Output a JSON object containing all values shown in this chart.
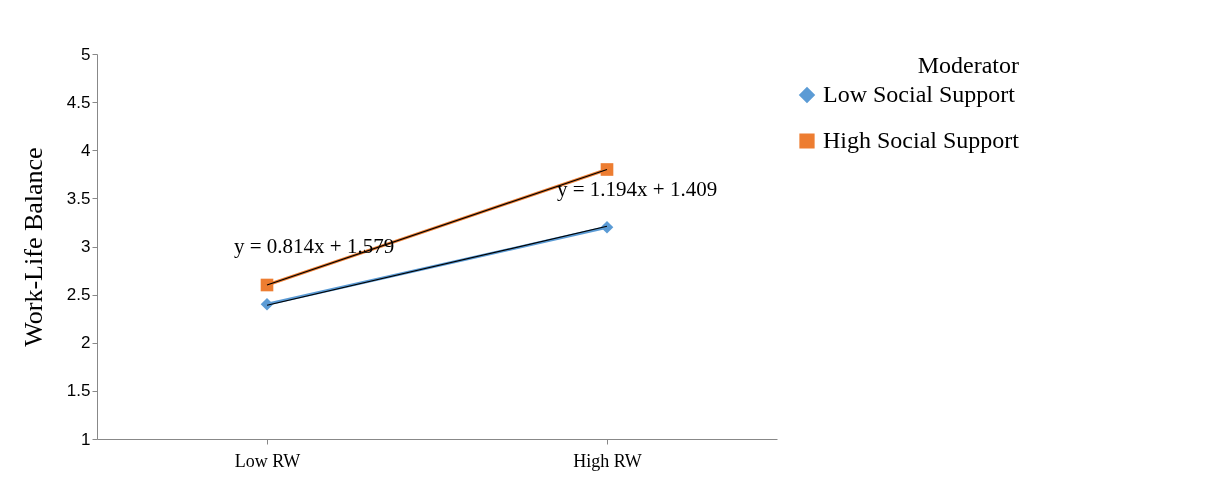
{
  "chart_data": {
    "type": "line",
    "ylabel": "Work-Life Balance",
    "legend_title": "Moderator",
    "categories": [
      "Low RW",
      "High RW"
    ],
    "series": [
      {
        "name": "Low Social Support",
        "color": "#5b9bd5",
        "values": [
          2.4,
          3.2
        ],
        "marker": "diamond"
      },
      {
        "name": "High Social Support",
        "color": "#ed7d31",
        "values": [
          2.6,
          3.8
        ],
        "marker": "square"
      },
      {
        "type": "line",
        "color": "#000000",
        "values": [
          2.39,
          3.21
        ]
      },
      {
        "type": "line",
        "color": "#000000",
        "values": [
          2.6,
          3.8
        ]
      }
    ],
    "ylim": [
      1,
      5
    ],
    "yticks": [
      1,
      1.5,
      2,
      2.5,
      3,
      3.5,
      4,
      4.5,
      5
    ],
    "grid": false,
    "legend": "right",
    "annotations": [
      "y = 0.814x + 1.579",
      "y = 1.194x + 1.409"
    ]
  }
}
